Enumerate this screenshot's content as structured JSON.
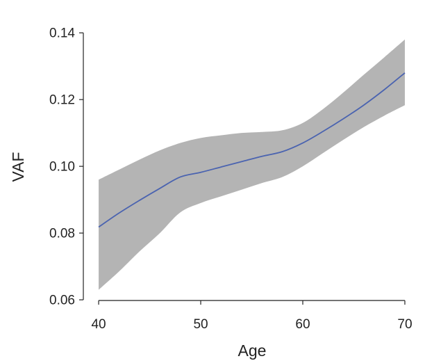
{
  "chart_data": {
    "type": "line",
    "xlabel": "Age",
    "ylabel": "VAF",
    "xlim": [
      38.5,
      71.5
    ],
    "ylim": [
      0.0598,
      0.1415
    ],
    "x_ticks": [
      40,
      50,
      60,
      70
    ],
    "x_tick_labels": [
      "40",
      "50",
      "60",
      "70"
    ],
    "y_ticks": [
      0.06,
      0.08,
      0.1,
      0.12,
      0.14
    ],
    "y_tick_labels": [
      "0.06",
      "0.08",
      "0.10",
      "0.12",
      "0.14"
    ],
    "grid": false,
    "colors": {
      "line": "#4a63b0",
      "band": "#b4b4b4",
      "axis": "#222222"
    },
    "series": [
      {
        "x": [
          40,
          42,
          44,
          46,
          48,
          50,
          52,
          54,
          56,
          58,
          60,
          62,
          64,
          66,
          68,
          70
        ],
        "y": [
          0.0818,
          0.086,
          0.0898,
          0.0934,
          0.0968,
          0.0982,
          0.0998,
          0.1014,
          0.103,
          0.1044,
          0.107,
          0.1105,
          0.1143,
          0.1184,
          0.123,
          0.128
        ],
        "lower": [
          0.063,
          0.0685,
          0.0745,
          0.08,
          0.0862,
          0.089,
          0.091,
          0.093,
          0.095,
          0.0968,
          0.1,
          0.104,
          0.108,
          0.1118,
          0.1152,
          0.1183
        ],
        "upper": [
          0.096,
          0.099,
          0.102,
          0.1048,
          0.107,
          0.1085,
          0.1093,
          0.11,
          0.1103,
          0.1108,
          0.113,
          0.1172,
          0.1222,
          0.1275,
          0.1327,
          0.138
        ]
      }
    ]
  }
}
